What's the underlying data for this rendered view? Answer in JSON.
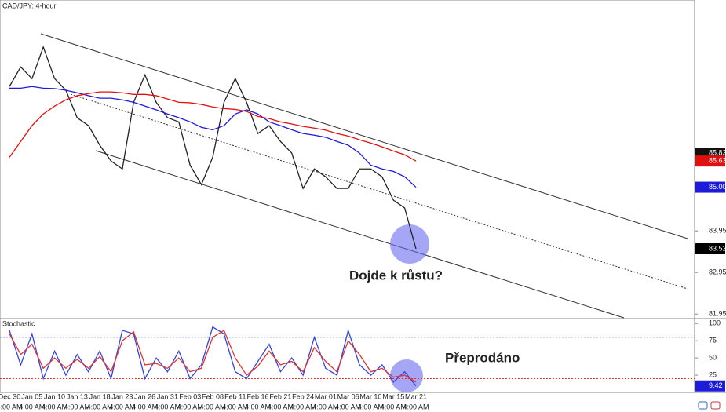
{
  "chart_data": [
    {
      "type": "line",
      "title": "CAD/JPY: 4-hour",
      "annotation": "Dojde k růstu?",
      "time_label": "4:00 AM",
      "categories": [
        "Dec 30",
        null,
        "Jan 05",
        null,
        "Jan 10",
        null,
        "Jan 13",
        null,
        "Jan 18",
        null,
        "Jan 23",
        null,
        "Jan 26",
        null,
        "Jan 31",
        null,
        "Feb 03",
        null,
        "Feb 08",
        null,
        "Feb 11",
        null,
        "Feb 16",
        null,
        "Feb 21",
        null,
        "Feb 24",
        null,
        "Mar 01",
        null,
        "Mar 06",
        null,
        "Mar 10",
        null,
        "Mar 15",
        null,
        "Mar 21"
      ],
      "series": [
        {
          "color": "#222222",
          "values": [
            87.42,
            87.89,
            87.61,
            88.37,
            87.61,
            87.33,
            86.67,
            86.48,
            86.01,
            85.63,
            85.44,
            87.04,
            87.7,
            87.04,
            86.67,
            86.57,
            85.53,
            85.06,
            85.72,
            87.04,
            87.61,
            87.04,
            86.29,
            86.48,
            86.1,
            85.82,
            84.97,
            85.44,
            85.25,
            84.97,
            84.97,
            85.44,
            85.44,
            85.25,
            84.69,
            84.5,
            83.52
          ]
        },
        {
          "color": "#1c1cd9",
          "values": [
            87.38,
            87.38,
            87.42,
            87.38,
            87.37,
            87.33,
            87.27,
            87.2,
            87.14,
            87.14,
            87.1,
            87.04,
            86.95,
            86.86,
            86.76,
            86.67,
            86.57,
            86.44,
            86.38,
            86.48,
            86.76,
            86.86,
            86.76,
            86.57,
            86.48,
            86.38,
            86.29,
            86.25,
            86.2,
            86.1,
            86.01,
            85.82,
            85.53,
            85.44,
            85.38,
            85.25,
            85.0
          ]
        },
        {
          "color": "#e01010",
          "values": [
            85.72,
            86.1,
            86.48,
            86.76,
            86.95,
            87.1,
            87.2,
            87.25,
            87.29,
            87.29,
            87.27,
            87.23,
            87.23,
            87.2,
            87.12,
            87.04,
            87.03,
            86.99,
            86.93,
            86.89,
            86.87,
            86.82,
            86.7,
            86.65,
            86.57,
            86.52,
            86.46,
            86.42,
            86.37,
            86.29,
            86.23,
            86.14,
            86.06,
            85.97,
            85.87,
            85.78,
            85.63
          ]
        }
      ],
      "ylim": [
        81.86,
        89.5
      ],
      "yticks": [
        81.95,
        82.95,
        83.95
      ],
      "price_labels": [
        {
          "value": 85.82,
          "label": "85.82",
          "color": "#111111"
        },
        {
          "value": 85.63,
          "label": "85.63",
          "color": "#e01010"
        },
        {
          "value": 85,
          "label": "85.00",
          "color": "#1c1cd9"
        },
        {
          "value": 83.52,
          "label": "83.52",
          "color": "#000000"
        }
      ]
    },
    {
      "type": "line",
      "title": "Stochastic",
      "annotation": "Přeprodáno",
      "series": [
        {
          "color": "#3344dd",
          "values": [
            90,
            40,
            85,
            20,
            60,
            25,
            55,
            30,
            60,
            20,
            90,
            85,
            20,
            50,
            30,
            60,
            20,
            40,
            95,
            85,
            30,
            20,
            45,
            70,
            30,
            50,
            25,
            80,
            35,
            25,
            90,
            40,
            25,
            40,
            15,
            30,
            9.42
          ]
        },
        {
          "color": "#dd3333",
          "values": [
            85,
            55,
            70,
            35,
            50,
            35,
            48,
            35,
            52,
            30,
            75,
            88,
            40,
            42,
            35,
            50,
            30,
            35,
            80,
            90,
            50,
            25,
            38,
            60,
            40,
            45,
            30,
            65,
            45,
            30,
            75,
            55,
            30,
            35,
            22,
            25,
            15
          ]
        }
      ],
      "ylim": [
        0,
        106
      ],
      "yticks": [
        25,
        50,
        75,
        100
      ],
      "levels": [
        {
          "value": 80,
          "color": "#3344dd"
        },
        {
          "value": 20,
          "color": "#dd3333"
        }
      ],
      "last_label": {
        "value": 9.42,
        "color": "#1c1cd9"
      }
    }
  ]
}
